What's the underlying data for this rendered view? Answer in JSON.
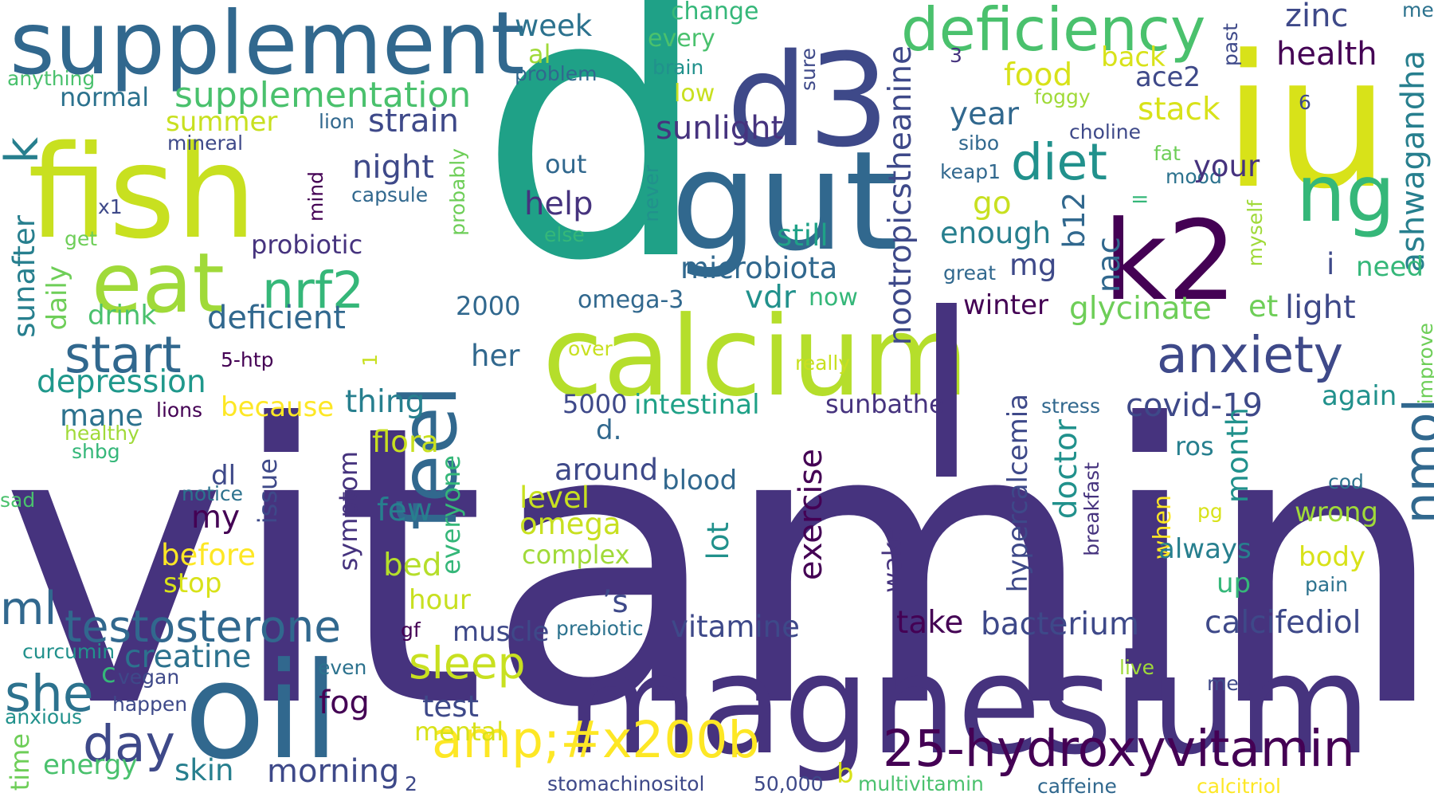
{
  "palette": {
    "dark_purple": "#46337e",
    "deep_purple": "#440154",
    "indigo": "#3e4989",
    "blue": "#31688e",
    "teal_blue": "#277f8e",
    "teal": "#21918c",
    "green_teal": "#1fa187",
    "green": "#35b779",
    "light_green": "#6ece58",
    "yellow_green": "#b5de2b",
    "yellow": "#fde725"
  },
  "words": [
    {
      "text": "vitamin",
      "color": "#46337e"
    },
    {
      "text": "d",
      "color": "#1fa187"
    },
    {
      "text": "magnesium",
      "color": "#46337e"
    },
    {
      "text": "calcium",
      "color": "#b5de2b"
    },
    {
      "text": "iu",
      "color": "#d8e219"
    },
    {
      "text": "d3",
      "color": "#3e4989"
    },
    {
      "text": "gut",
      "color": "#31688e"
    },
    {
      "text": "fish",
      "color": "#c8e020"
    },
    {
      "text": "oil",
      "color": "#31688e"
    },
    {
      "text": "k2",
      "color": "#440154"
    },
    {
      "text": "supplement",
      "color": "#31688e"
    },
    {
      "text": "eat",
      "color": "#a0da39"
    },
    {
      "text": "feel",
      "color": "#31688e"
    },
    {
      "text": "l",
      "color": "#46337e"
    },
    {
      "text": "ng",
      "color": "#35b779"
    },
    {
      "text": "deficiency",
      "color": "#4ac16d"
    },
    {
      "text": "25-hydroxyvitamin",
      "color": "#440154"
    },
    {
      "text": "amp;#x200b",
      "color": "#fde725"
    },
    {
      "text": "nrf2",
      "color": "#35b779"
    },
    {
      "text": "testosterone",
      "color": "#31688e"
    },
    {
      "text": "sleep",
      "color": "#c8e020"
    },
    {
      "text": "day",
      "color": "#3e4989"
    },
    {
      "text": "start",
      "color": "#31688e"
    },
    {
      "text": "anxiety",
      "color": "#3e4989"
    },
    {
      "text": "diet",
      "color": "#21918c"
    },
    {
      "text": "nmol",
      "color": "#31688e"
    },
    {
      "text": "she",
      "color": "#2c728e"
    },
    {
      "text": "ml",
      "color": "#31688e"
    },
    {
      "text": "k",
      "color": "#277f8e"
    },
    {
      "text": "supplementation",
      "color": "#4ac16d"
    },
    {
      "text": "deficient",
      "color": "#31688e"
    },
    {
      "text": "depression",
      "color": "#1f988b"
    },
    {
      "text": "strain",
      "color": "#3e4989"
    },
    {
      "text": "summer",
      "color": "#c8e020"
    },
    {
      "text": "normal",
      "color": "#2c728e"
    },
    {
      "text": "week",
      "color": "#2c728e"
    },
    {
      "text": "al",
      "color": "#a0da39"
    },
    {
      "text": "anything",
      "color": "#4ac16d"
    },
    {
      "text": "change",
      "color": "#35b779"
    },
    {
      "text": "every",
      "color": "#4ac16d"
    },
    {
      "text": "brain",
      "color": "#21918c"
    },
    {
      "text": "low",
      "color": "#c8e020"
    },
    {
      "text": "problem",
      "color": "#31688e"
    },
    {
      "text": "sunlight",
      "color": "#46337e"
    },
    {
      "text": "night",
      "color": "#3e4989"
    },
    {
      "text": "out",
      "color": "#31688e"
    },
    {
      "text": "help",
      "color": "#46337e"
    },
    {
      "text": "probiotic",
      "color": "#46337e"
    },
    {
      "text": "microbiota",
      "color": "#31688e"
    },
    {
      "text": "still",
      "color": "#1fa187"
    },
    {
      "text": "vdr",
      "color": "#21918c"
    },
    {
      "text": "now",
      "color": "#35b779"
    },
    {
      "text": "omega-3",
      "color": "#31688e"
    },
    {
      "text": "2000",
      "color": "#31688e"
    },
    {
      "text": "her",
      "color": "#31688e"
    },
    {
      "text": "thing",
      "color": "#277f8e"
    },
    {
      "text": "5000",
      "color": "#3e4989"
    },
    {
      "text": "d.",
      "color": "#31688e"
    },
    {
      "text": "intestinal",
      "color": "#1fa187"
    },
    {
      "text": "sunbathe",
      "color": "#46337e"
    },
    {
      "text": "covid-19",
      "color": "#3e4989"
    },
    {
      "text": "zinc",
      "color": "#3e4989"
    },
    {
      "text": "health",
      "color": "#440154"
    },
    {
      "text": "3",
      "color": "#46337e"
    },
    {
      "text": "back",
      "color": "#d8e219"
    },
    {
      "text": "food",
      "color": "#d8e219"
    },
    {
      "text": "ace2",
      "color": "#3e4989"
    },
    {
      "text": "year",
      "color": "#31688e"
    },
    {
      "text": "stack",
      "color": "#d8e219"
    },
    {
      "text": "choline",
      "color": "#3e4989"
    },
    {
      "text": "sibo",
      "color": "#31688e"
    },
    {
      "text": "foggy",
      "color": "#a0da39"
    },
    {
      "text": "meat",
      "color": "#2c728e"
    },
    {
      "text": "past",
      "color": "#3e4989"
    },
    {
      "text": "sure",
      "color": "#3e4989"
    },
    {
      "text": "6",
      "color": "#3e4989"
    },
    {
      "text": "fat",
      "color": "#6ece58"
    },
    {
      "text": "mood",
      "color": "#2c728e"
    },
    {
      "text": "your",
      "color": "#46337e"
    },
    {
      "text": "ashwagandha",
      "color": "#277f8e"
    },
    {
      "text": "keap1",
      "color": "#31688e"
    },
    {
      "text": "=",
      "color": "#35b779"
    },
    {
      "text": "go",
      "color": "#c8e020"
    },
    {
      "text": "enough",
      "color": "#277f8e"
    },
    {
      "text": "mg",
      "color": "#3e4989"
    },
    {
      "text": "b12",
      "color": "#31688e"
    },
    {
      "text": "nac",
      "color": "#31688e"
    },
    {
      "text": "great",
      "color": "#31688e"
    },
    {
      "text": "myself",
      "color": "#a0da39"
    },
    {
      "text": "i",
      "color": "#3e4989"
    },
    {
      "text": "need",
      "color": "#35b779"
    },
    {
      "text": "winter",
      "color": "#440154"
    },
    {
      "text": "glycinate",
      "color": "#6ece58"
    },
    {
      "text": "et",
      "color": "#6ece58"
    },
    {
      "text": "light",
      "color": "#3e4989"
    },
    {
      "text": "nootropicstheanine",
      "color": "#3e4989"
    },
    {
      "text": "again",
      "color": "#21918c"
    },
    {
      "text": "improve",
      "color": "#6ece58"
    },
    {
      "text": "stress",
      "color": "#31688e"
    },
    {
      "text": "over",
      "color": "#c8e020"
    },
    {
      "text": "really",
      "color": "#c8e020"
    },
    {
      "text": "lion",
      "color": "#31688e"
    },
    {
      "text": "mineral",
      "color": "#3e4989"
    },
    {
      "text": "capsule",
      "color": "#31688e"
    },
    {
      "text": "x1",
      "color": "#3e4989"
    },
    {
      "text": "get",
      "color": "#6ece58"
    },
    {
      "text": "mind",
      "color": "#440154"
    },
    {
      "text": "probably",
      "color": "#6ece58"
    },
    {
      "text": "else",
      "color": "#35b779"
    },
    {
      "text": "never",
      "color": "#21918c"
    },
    {
      "text": "sunafter",
      "color": "#277f8e"
    },
    {
      "text": "daily",
      "color": "#6ece58"
    },
    {
      "text": "drink",
      "color": "#4ac16d"
    },
    {
      "text": "5-htp",
      "color": "#440154"
    },
    {
      "text": "1",
      "color": "#c8e020"
    },
    {
      "text": "mane",
      "color": "#2c728e"
    },
    {
      "text": "lions",
      "color": "#440154"
    },
    {
      "text": "because",
      "color": "#fde725"
    },
    {
      "text": "healthy",
      "color": "#a0da39"
    },
    {
      "text": "shbg",
      "color": "#35b779"
    },
    {
      "text": "flora",
      "color": "#c8e020"
    },
    {
      "text": "symptom",
      "color": "#46337e"
    },
    {
      "text": "issue",
      "color": "#3e4989"
    },
    {
      "text": "dl",
      "color": "#3e4989"
    },
    {
      "text": "notice",
      "color": "#2c728e"
    },
    {
      "text": "sad",
      "color": "#4ac16d"
    },
    {
      "text": "my",
      "color": "#440154"
    },
    {
      "text": "few",
      "color": "#277f8e"
    },
    {
      "text": "everyone",
      "color": "#35b779"
    },
    {
      "text": "around",
      "color": "#3e4989"
    },
    {
      "text": "blood",
      "color": "#31688e"
    },
    {
      "text": "level",
      "color": "#c8e020"
    },
    {
      "text": "omega",
      "color": "#c8e020"
    },
    {
      "text": "complex",
      "color": "#a0da39"
    },
    {
      "text": "before",
      "color": "#fde725"
    },
    {
      "text": "stop",
      "color": "#d8e219"
    },
    {
      "text": "bed",
      "color": "#b5de2b"
    },
    {
      "text": "’s",
      "color": "#3e4989"
    },
    {
      "text": "hour",
      "color": "#c8e020"
    },
    {
      "text": "exercise",
      "color": "#440154"
    },
    {
      "text": "lot",
      "color": "#21918c"
    },
    {
      "text": "wake",
      "color": "#46337e"
    },
    {
      "text": "hypercalcemia",
      "color": "#3e4989"
    },
    {
      "text": "doctor",
      "color": "#21918c"
    },
    {
      "text": "breakfast",
      "color": "#46337e"
    },
    {
      "text": "month",
      "color": "#21918c"
    },
    {
      "text": "ros",
      "color": "#277f8e"
    },
    {
      "text": "when",
      "color": "#fde725"
    },
    {
      "text": "cod",
      "color": "#2c728e"
    },
    {
      "text": "pg",
      "color": "#d8e219"
    },
    {
      "text": "wrong",
      "color": "#a0da39"
    },
    {
      "text": "always",
      "color": "#277f8e"
    },
    {
      "text": "up",
      "color": "#35b779"
    },
    {
      "text": "body",
      "color": "#d8e219"
    },
    {
      "text": "pain",
      "color": "#2c728e"
    },
    {
      "text": "take",
      "color": "#440154"
    },
    {
      "text": "bacterium",
      "color": "#3e4989"
    },
    {
      "text": "calcifediol",
      "color": "#3e4989"
    },
    {
      "text": "vitamine",
      "color": "#3e4989"
    },
    {
      "text": "muscle",
      "color": "#3e4989"
    },
    {
      "text": "prebiotic",
      "color": "#2c728e"
    },
    {
      "text": "creatine",
      "color": "#2c728e"
    },
    {
      "text": "c",
      "color": "#35b779"
    },
    {
      "text": "vegan",
      "color": "#3e4989"
    },
    {
      "text": "curcumin",
      "color": "#21918c"
    },
    {
      "text": "happen",
      "color": "#3e4989"
    },
    {
      "text": "even",
      "color": "#2c728e"
    },
    {
      "text": "anxious",
      "color": "#21918c"
    },
    {
      "text": "gf",
      "color": "#440154"
    },
    {
      "text": "fog",
      "color": "#440154"
    },
    {
      "text": "test",
      "color": "#3e4989"
    },
    {
      "text": "mental",
      "color": "#d8e219"
    },
    {
      "text": "time",
      "color": "#6ece58"
    },
    {
      "text": "energy",
      "color": "#4ac16d"
    },
    {
      "text": "skin",
      "color": "#277f8e"
    },
    {
      "text": "morning",
      "color": "#3e4989"
    },
    {
      "text": "2",
      "color": "#3e4989"
    },
    {
      "text": "b",
      "color": "#d8e219"
    },
    {
      "text": "stomachinositol",
      "color": "#3e4989"
    },
    {
      "text": "50,000",
      "color": "#3e4989"
    },
    {
      "text": "multivitamin",
      "color": "#4ac16d"
    },
    {
      "text": "caffeine",
      "color": "#31688e"
    },
    {
      "text": "calcitriol",
      "color": "#fde725"
    },
    {
      "text": "live",
      "color": "#a0da39"
    },
    {
      "text": "me",
      "color": "#3e4989"
    }
  ]
}
